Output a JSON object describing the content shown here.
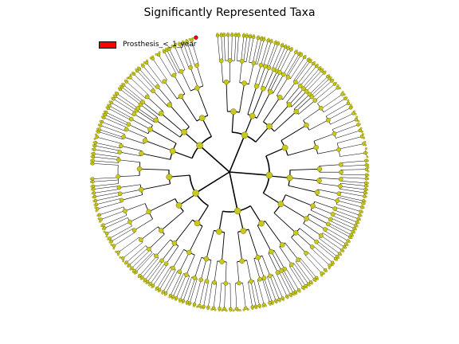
{
  "figure": {
    "title": "Significantly Represented Taxa",
    "legend_label": "Prosthesis_<_1_year",
    "legend_color": "#ff0000",
    "node_color": "#c8c81e",
    "node_edge_color": "#6b6b00",
    "branch_color": "#000000"
  },
  "chart_data": {
    "type": "cladogram",
    "title": "Significantly Represented Taxa",
    "legend": [
      {
        "label": "Prosthesis_<_1_year",
        "color": "#ff0000"
      }
    ],
    "highlighted_clades": 1
  }
}
